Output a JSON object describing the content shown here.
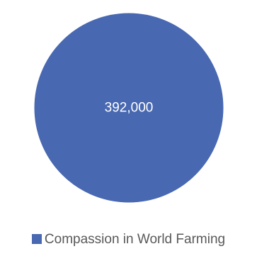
{
  "chart_data": {
    "type": "pie",
    "title": "",
    "slices": [
      {
        "name": "Compassion in World Farming",
        "value": 392000,
        "label": "392,000"
      }
    ],
    "colors": [
      "#4868b1"
    ],
    "legend": {
      "placement": "bottom"
    },
    "data_labels": true
  }
}
